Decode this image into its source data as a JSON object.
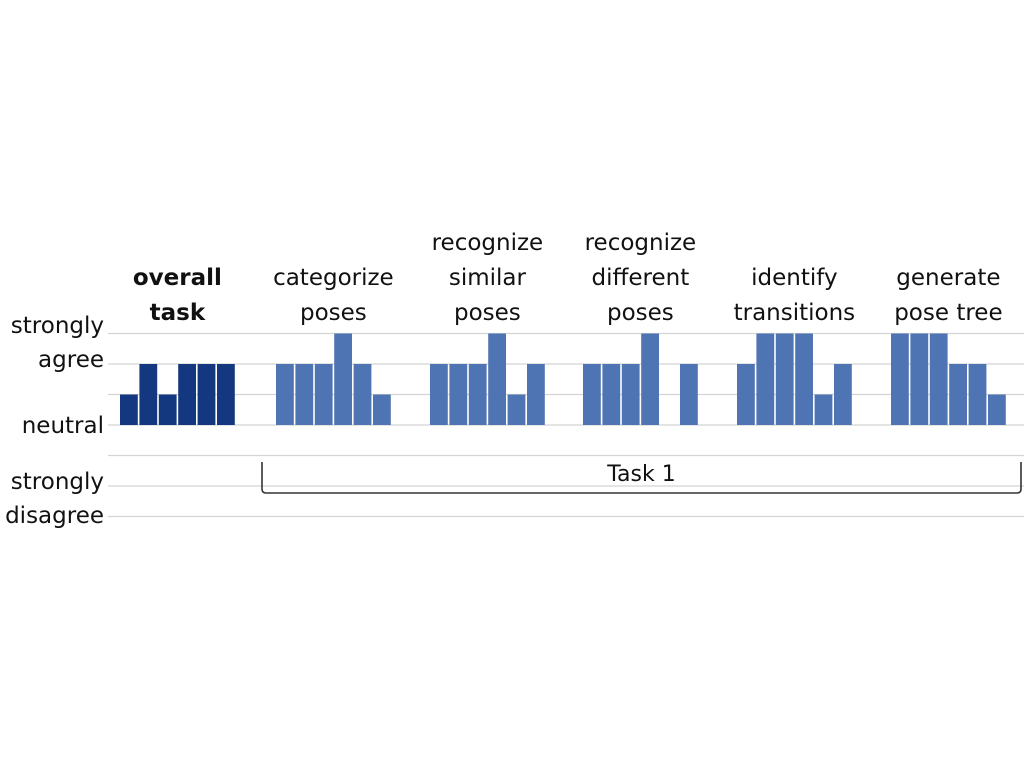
{
  "chart_data": {
    "type": "bar",
    "y_levels": [
      {
        "value": 2,
        "label_lines": [
          "strongly",
          "agree"
        ]
      },
      {
        "value": 0,
        "label_lines": [
          "neutral"
        ]
      },
      {
        "value": -2,
        "label_lines": [
          "strongly",
          "disagree"
        ]
      }
    ],
    "ylim": [
      -3,
      3
    ],
    "grid": true,
    "groups": [
      {
        "label_lines": [
          "overall",
          "task"
        ],
        "bold": true,
        "color": "#14387f",
        "values": [
          1,
          2,
          1,
          2,
          2,
          2
        ]
      },
      {
        "label_lines": [
          "categorize",
          "poses"
        ],
        "bold": false,
        "color": "#4f74b3",
        "values": [
          2,
          2,
          2,
          3,
          2,
          1
        ]
      },
      {
        "label_lines": [
          "recognize",
          "similar",
          "poses"
        ],
        "bold": false,
        "color": "#4f74b3",
        "values": [
          2,
          2,
          2,
          3,
          1,
          2
        ]
      },
      {
        "label_lines": [
          "recognize",
          "different",
          "poses"
        ],
        "bold": false,
        "color": "#4f74b3",
        "values": [
          2,
          2,
          2,
          3,
          0,
          2
        ]
      },
      {
        "label_lines": [
          "identify",
          "transitions"
        ],
        "bold": false,
        "color": "#4f74b3",
        "values": [
          2,
          3,
          3,
          3,
          1,
          2
        ]
      },
      {
        "label_lines": [
          "generate",
          "pose tree"
        ],
        "bold": false,
        "color": "#4f74b3",
        "values": [
          3,
          3,
          3,
          2,
          2,
          1
        ]
      }
    ],
    "bracket": {
      "label": "Task 1",
      "from_group": 1,
      "to_group": 5
    }
  }
}
